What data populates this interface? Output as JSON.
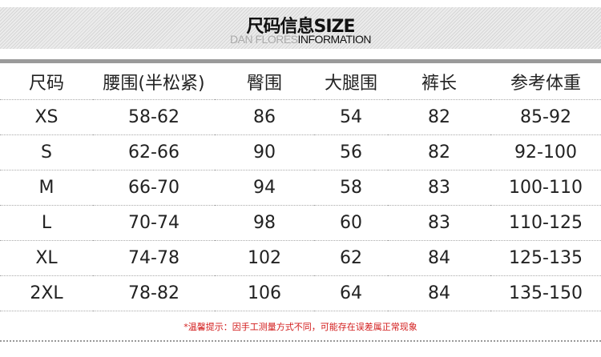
{
  "banner": {
    "title": "尺码信息SIZE",
    "subtitle_light": "DAN FLORES",
    "subtitle_dark": "INFORMATION"
  },
  "table": {
    "headers": [
      "尺码",
      "腰围(半松紧)",
      "臀围",
      "大腿围",
      "裤长",
      "参考体重"
    ],
    "rows": [
      [
        "XS",
        "58-62",
        "86",
        "54",
        "82",
        "85-92"
      ],
      [
        "S",
        "62-66",
        "90",
        "56",
        "82",
        "92-100"
      ],
      [
        "M",
        "66-70",
        "94",
        "58",
        "83",
        "100-110"
      ],
      [
        "L",
        "70-74",
        "98",
        "60",
        "83",
        "110-125"
      ],
      [
        "XL",
        "74-78",
        "102",
        "62",
        "84",
        "125-135"
      ],
      [
        "2XL",
        "78-82",
        "106",
        "64",
        "84",
        "135-150"
      ]
    ]
  },
  "note": "*温馨提示：因手工测量方式不同，可能存在误差属正常现象",
  "colors": {
    "note": "#d21a1a",
    "bar": "#9a9a9a"
  }
}
